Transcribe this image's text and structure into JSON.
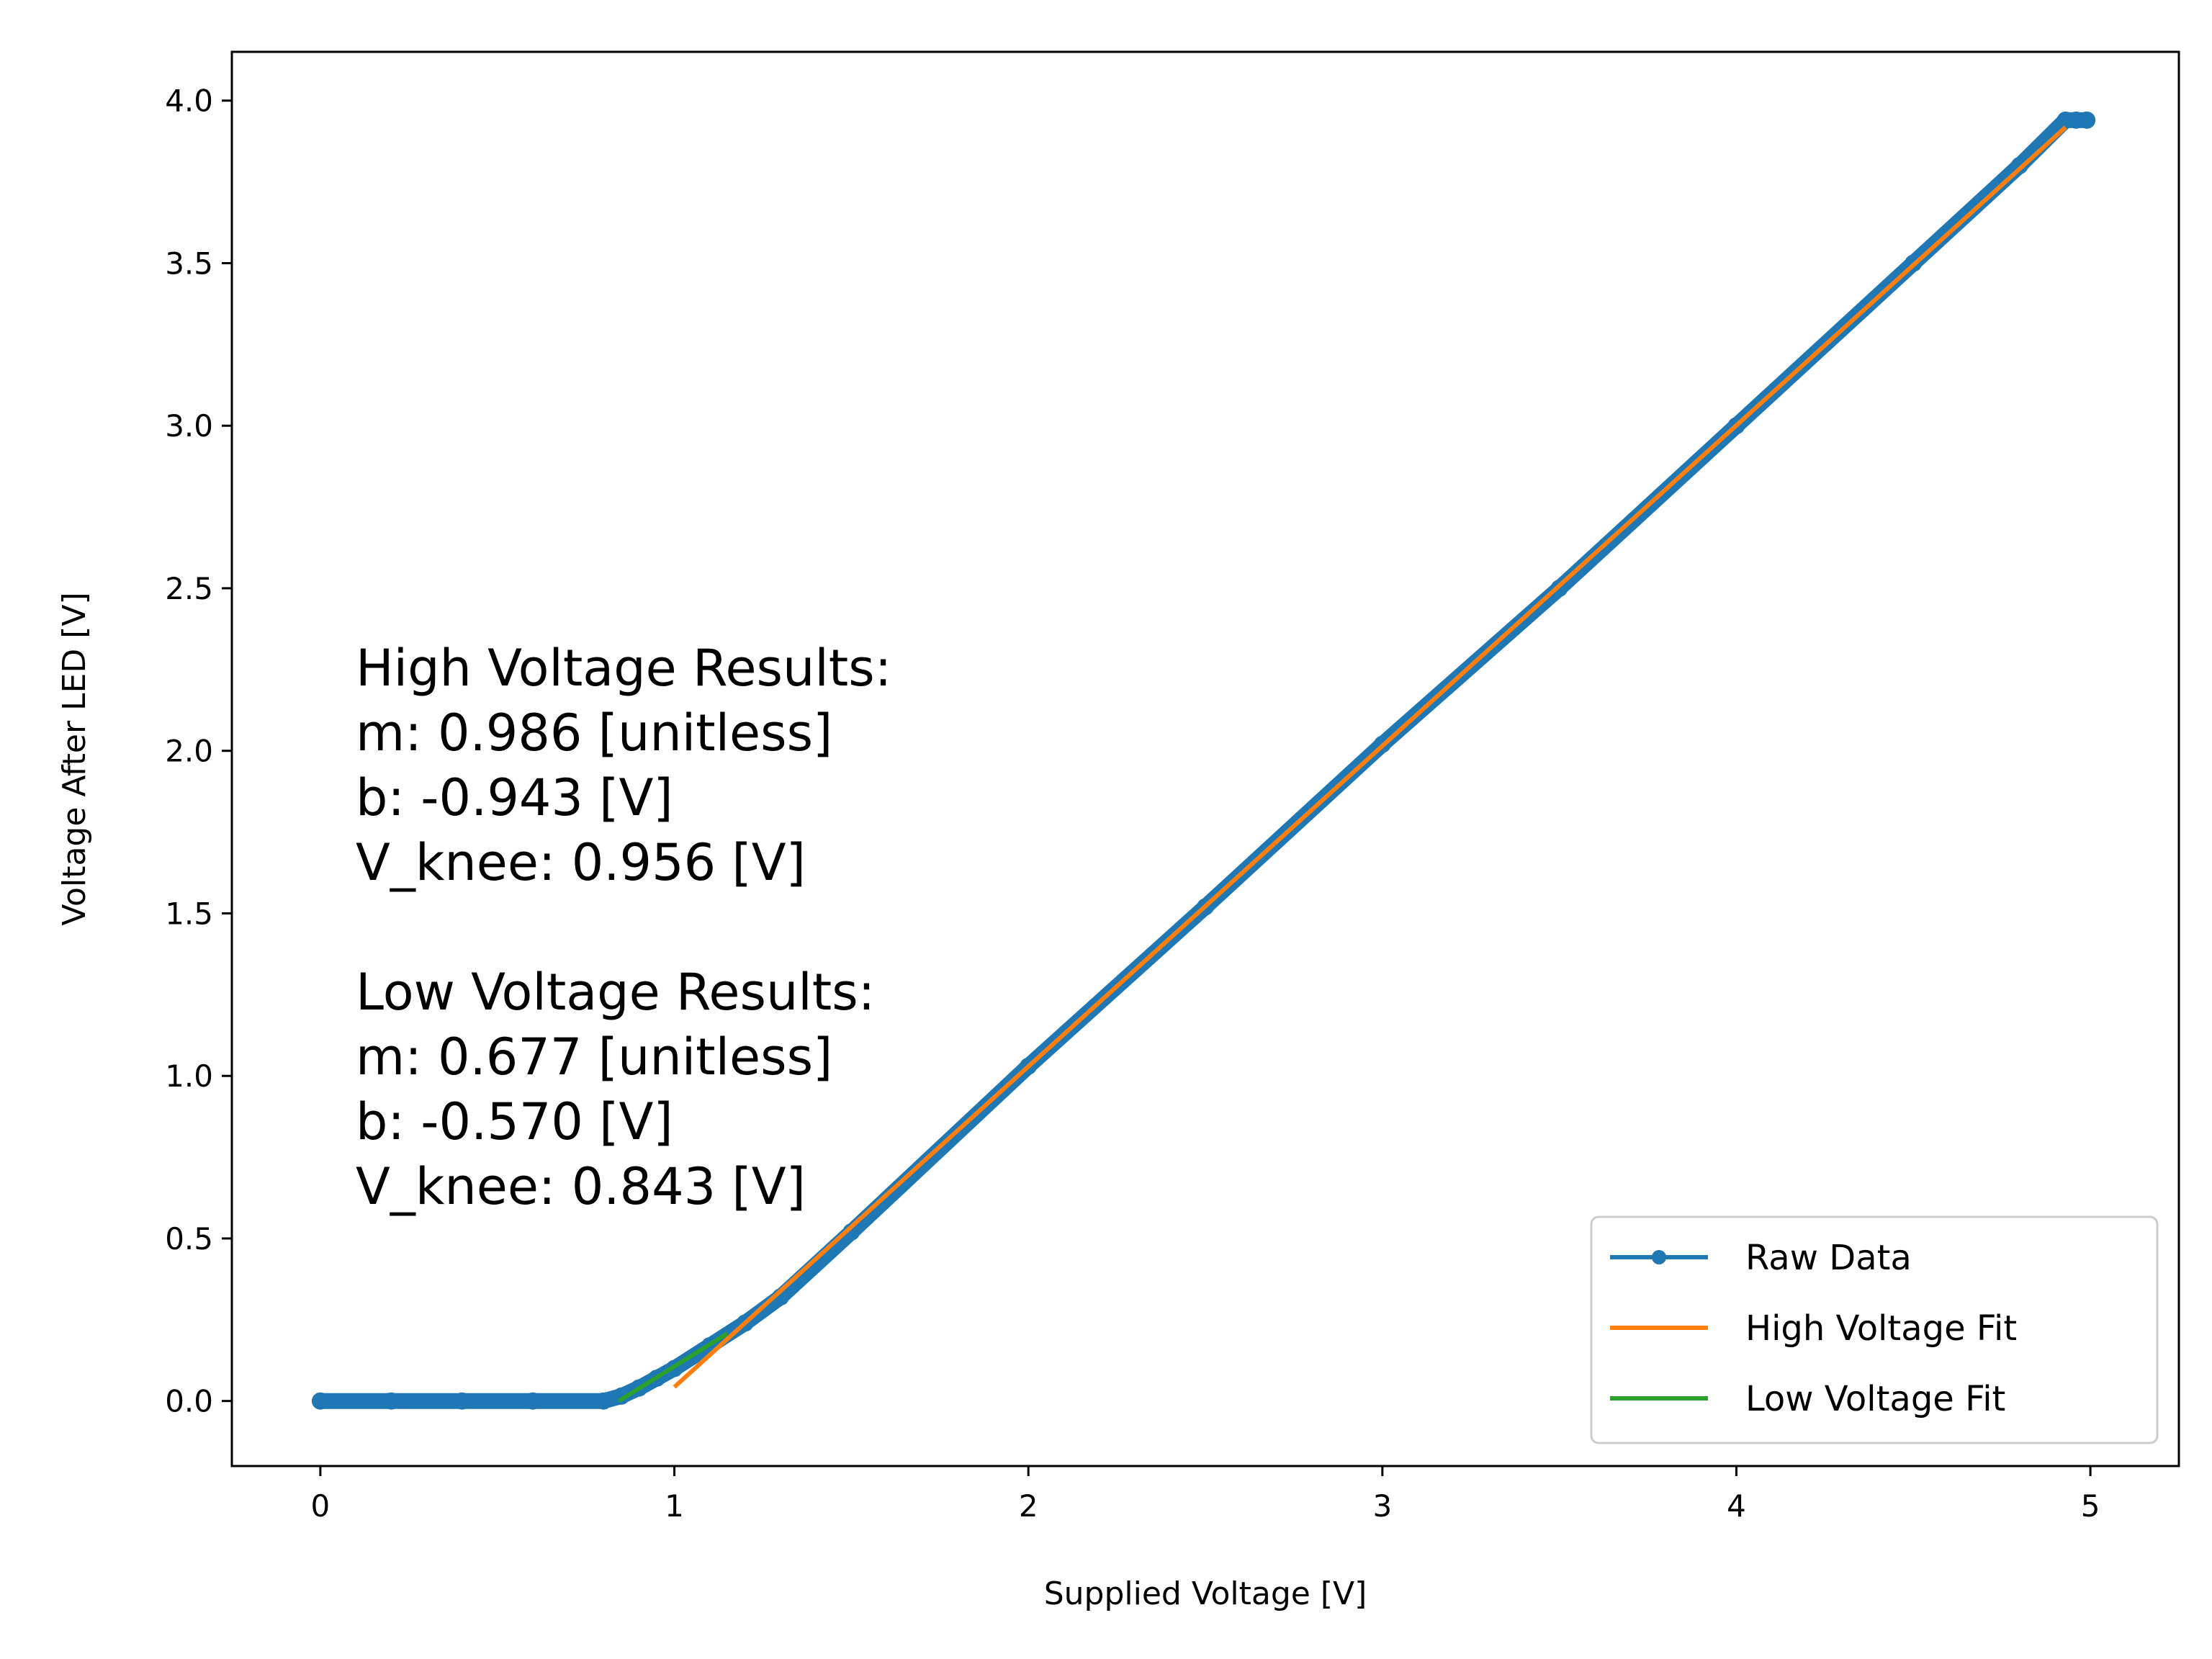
{
  "chart_data": {
    "type": "line",
    "title": "",
    "xlabel": "Supplied Voltage [V]",
    "ylabel": "Voltage After LED [V]",
    "xlim": [
      -0.25,
      5.25
    ],
    "ylim": [
      -0.2,
      4.15
    ],
    "xticks": [
      0,
      1,
      2,
      3,
      4,
      5
    ],
    "yticks": [
      0.0,
      0.5,
      1.0,
      1.5,
      2.0,
      2.5,
      3.0,
      3.5,
      4.0
    ],
    "xtick_labels": [
      "0",
      "1",
      "2",
      "3",
      "4",
      "5"
    ],
    "ytick_labels": [
      "0.0",
      "0.5",
      "1.0",
      "1.5",
      "2.0",
      "2.5",
      "3.0",
      "3.5",
      "4.0"
    ],
    "grid": false,
    "legend_position": "lower-right",
    "series": [
      {
        "name": "Raw Data",
        "color": "#1f77b4",
        "style": "line-with-markers",
        "x": [
          0.0,
          0.2,
          0.4,
          0.6,
          0.8,
          0.85,
          0.9,
          0.95,
          1.0,
          1.1,
          1.2,
          1.3,
          1.5,
          2.0,
          2.5,
          3.0,
          3.5,
          4.0,
          4.5,
          4.8,
          4.93,
          4.96,
          4.99
        ],
        "y": [
          0.0,
          0.0,
          0.0,
          0.0,
          0.0,
          0.015,
          0.04,
          0.07,
          0.1,
          0.17,
          0.24,
          0.32,
          0.52,
          1.03,
          1.52,
          2.02,
          2.5,
          3.0,
          3.5,
          3.8,
          3.94,
          3.94,
          3.94
        ]
      },
      {
        "name": "High Voltage Fit",
        "color": "#ff7f0e",
        "style": "line",
        "x": [
          1.0,
          4.93
        ],
        "y": [
          0.043,
          3.918
        ]
      },
      {
        "name": "Low Voltage Fit",
        "color": "#2ca02c",
        "style": "line",
        "x": [
          0.843,
          1.15
        ],
        "y": [
          0.0,
          0.208
        ]
      }
    ],
    "annotations": [
      "High Voltage Results:",
      "m: 0.986 [unitless]",
      "b: -0.943 [V]",
      "V_knee: 0.956 [V]",
      "",
      "Low Voltage Results:",
      "m: 0.677 [unitless]",
      "b: -0.570 [V]",
      "V_knee: 0.843 [V]"
    ]
  }
}
